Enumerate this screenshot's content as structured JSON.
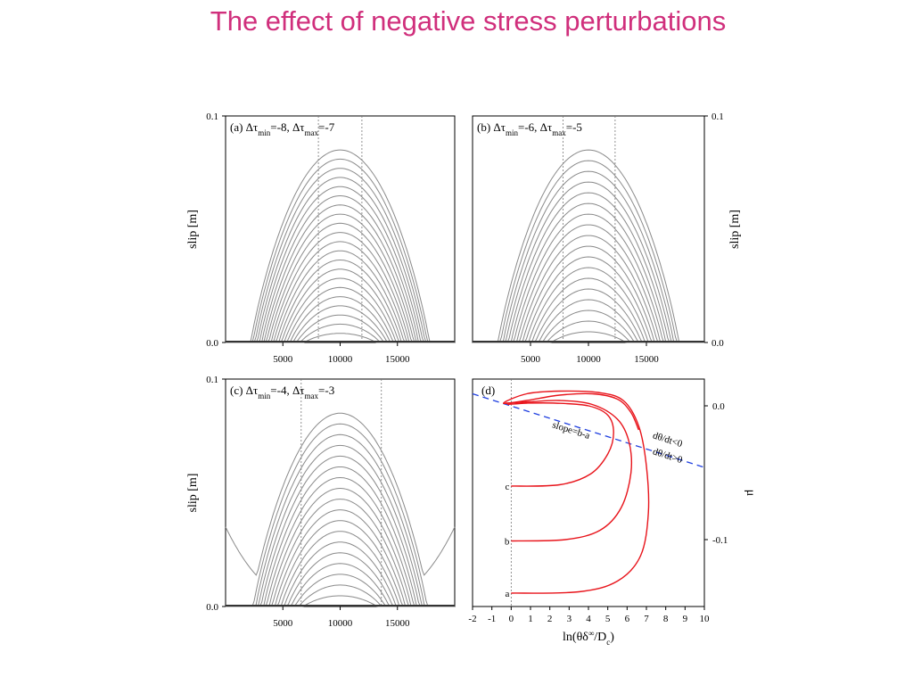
{
  "slide": {
    "title": "The effect of negative stress perturbations"
  },
  "colors": {
    "title": "#d02f7c",
    "curve_gray": "#8a8a8a",
    "red": "#e8141b",
    "blue_dashed": "#1f3fe0"
  },
  "chart_data": [
    {
      "type": "line",
      "panel": "a",
      "title_parts": [
        "(a) Δτ",
        "min",
        "=-8, Δτ",
        "max",
        "=-7"
      ],
      "ylabel": "slip [m]",
      "y_axis_side": "left",
      "xlim": [
        0,
        20000
      ],
      "ylim": [
        0,
        0.1
      ],
      "xticks": [
        5000,
        10000,
        15000
      ],
      "yticks": [
        "0.0",
        "0.1"
      ],
      "vlines": [
        8100,
        11900
      ],
      "n_curves": 21,
      "peak_x": 10000,
      "peak_max": 0.085,
      "edge_slip": 0.0
    },
    {
      "type": "line",
      "panel": "b",
      "title_parts": [
        "(b) Δτ",
        "min",
        "=-6, Δτ",
        "max",
        "=-5"
      ],
      "ylabel": "slip [m]",
      "y_axis_side": "right",
      "xlim": [
        0,
        20000
      ],
      "ylim": [
        0,
        0.1
      ],
      "xticks": [
        5000,
        10000,
        15000
      ],
      "yticks": [
        "0.0",
        "0.1"
      ],
      "vlines": [
        7800,
        12300
      ],
      "n_curves": 18,
      "peak_x": 10000,
      "peak_max": 0.085,
      "edge_slip": 0.0
    },
    {
      "type": "line",
      "panel": "c",
      "title_parts": [
        "(c) Δτ",
        "min",
        "=-4, Δτ",
        "max",
        "=-3"
      ],
      "ylabel": "slip [m]",
      "y_axis_side": "left",
      "xlim": [
        0,
        20000
      ],
      "ylim": [
        0,
        0.1
      ],
      "xticks": [
        5000,
        10000,
        15000
      ],
      "yticks": [
        "0.0",
        "0.1"
      ],
      "vlines": [
        6600,
        13600
      ],
      "n_curves": 18,
      "peak_x": 10000,
      "peak_max": 0.085,
      "edge_slip": 0.035
    },
    {
      "type": "line",
      "panel": "d",
      "title": "(d)",
      "xlabel_parts": [
        "ln(θδ",
        "∞",
        "/D",
        "c",
        ")"
      ],
      "ylabel": "μ",
      "y_axis_side": "right",
      "xlim": [
        -2,
        10
      ],
      "ylim": [
        -0.15,
        0.02
      ],
      "xticks": [
        -2,
        -1,
        0,
        1,
        2,
        3,
        4,
        5,
        6,
        7,
        8,
        9,
        10
      ],
      "yticks": [
        0.0,
        -0.1
      ],
      "ytick_labels": [
        "0.0",
        "-0.1"
      ],
      "series": [
        {
          "name": "a",
          "points": [
            [
              0.0,
              -0.14
            ],
            [
              3.5,
              -0.139
            ],
            [
              5.5,
              -0.131
            ],
            [
              6.7,
              -0.112
            ],
            [
              7.1,
              -0.08
            ],
            [
              7.0,
              -0.045
            ],
            [
              6.6,
              -0.015
            ],
            [
              5.8,
              0.004
            ],
            [
              4.5,
              0.01
            ],
            [
              2.5,
              0.011
            ],
            [
              0.8,
              0.009
            ],
            [
              -0.4,
              0.002
            ],
            [
              0.8,
              0.004
            ],
            [
              2.5,
              0.008
            ],
            [
              4.2,
              0.009
            ],
            [
              5.5,
              0.005
            ],
            [
              6.2,
              -0.005
            ],
            [
              6.6,
              -0.018
            ]
          ]
        },
        {
          "name": "b",
          "points": [
            [
              0.0,
              -0.101
            ],
            [
              2.8,
              -0.1
            ],
            [
              4.6,
              -0.093
            ],
            [
              5.7,
              -0.076
            ],
            [
              6.2,
              -0.05
            ],
            [
              6.1,
              -0.027
            ],
            [
              5.5,
              -0.01
            ],
            [
              4.2,
              0.001
            ],
            [
              2.5,
              0.004
            ],
            [
              1.0,
              0.003
            ],
            [
              -0.3,
              0.002
            ]
          ]
        },
        {
          "name": "c",
          "points": [
            [
              0.0,
              -0.06
            ],
            [
              2.5,
              -0.059
            ],
            [
              4.1,
              -0.051
            ],
            [
              5.0,
              -0.036
            ],
            [
              5.3,
              -0.02
            ],
            [
              5.0,
              -0.007
            ],
            [
              4.0,
              0.0
            ],
            [
              2.3,
              0.002
            ],
            [
              0.8,
              0.002
            ],
            [
              -0.2,
              0.001
            ]
          ]
        }
      ],
      "slope_line": {
        "label": "slope=b-a",
        "from": [
          -2,
          0.009
        ],
        "to": [
          10,
          -0.046
        ]
      },
      "annotations": [
        "dθ/dt<0",
        "dθ/dt>0"
      ]
    }
  ]
}
